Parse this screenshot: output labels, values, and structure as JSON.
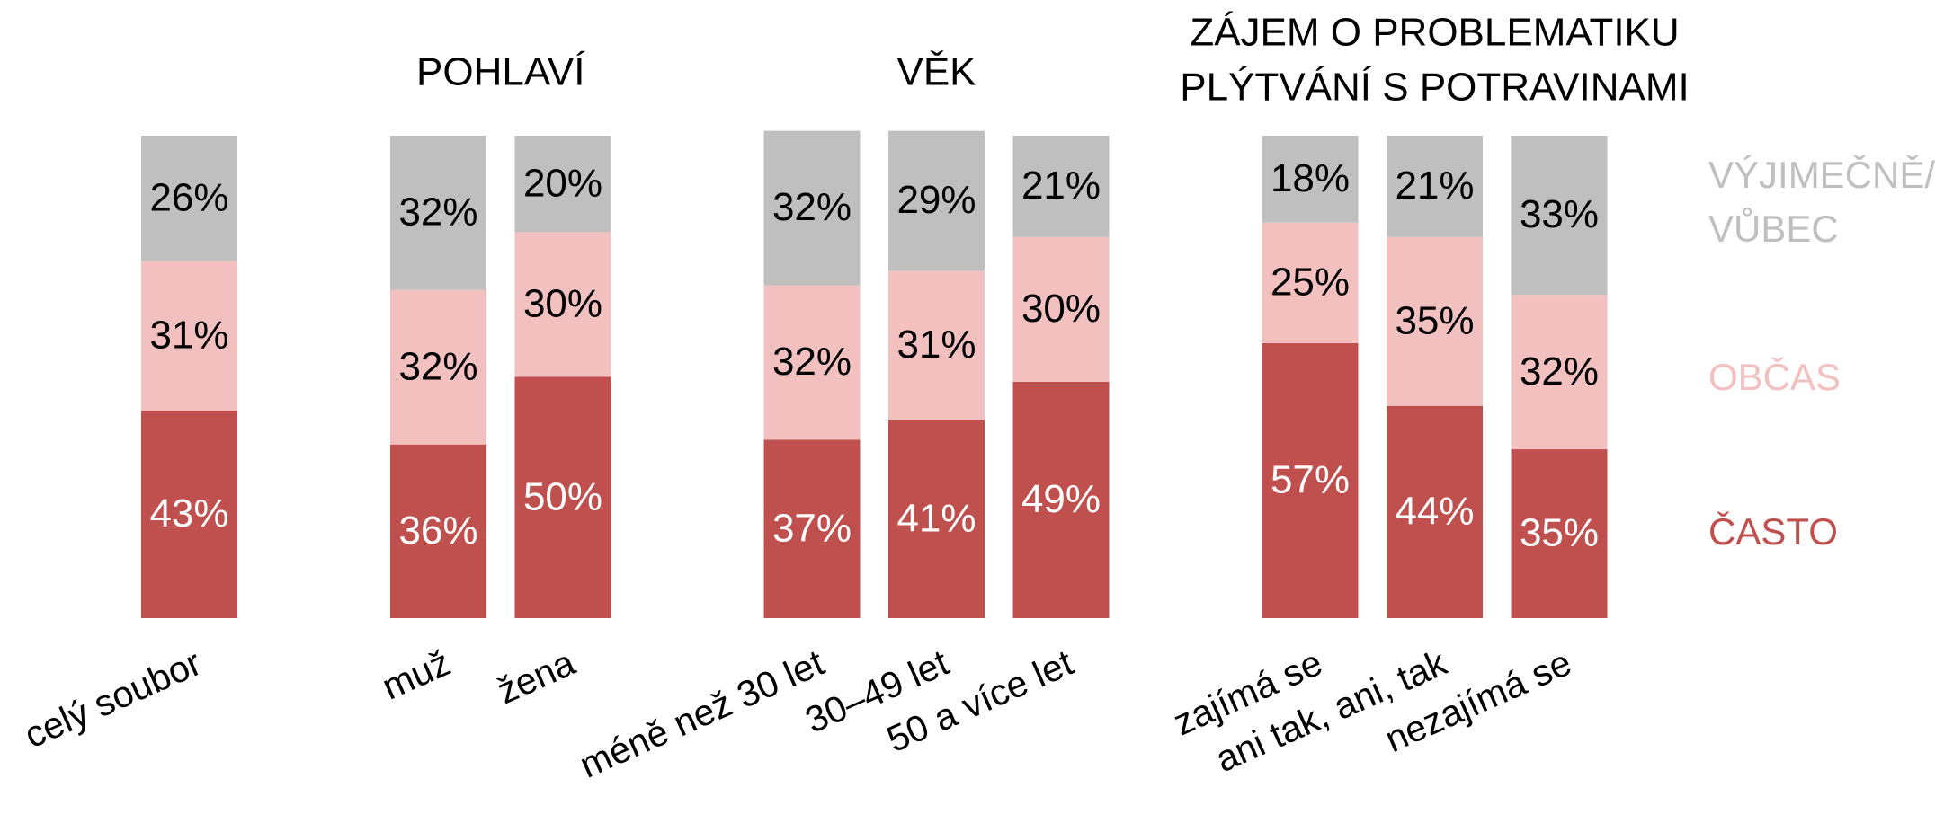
{
  "chart_data": {
    "type": "bar",
    "stacked": true,
    "annotations": [
      "POHLAVÍ",
      "VĚK",
      [
        "ZÁJEM O PROBLEMATIKU",
        "PLÝTVÁNÍ S POTRAVINAMI"
      ]
    ],
    "categories": [
      "celý soubor",
      null,
      "muž",
      "žena",
      null,
      "méně než 30 let",
      "30–49 let",
      "50 a více let",
      null,
      "zajímá se",
      "ani tak, ani, tak",
      "nezajímá se"
    ],
    "ylim": [
      0,
      100
    ],
    "series": [
      {
        "name": "ČASTO",
        "color": "#c0504d",
        "label_color": "#ffffff",
        "values": [
          43,
          null,
          36,
          50,
          null,
          37,
          41,
          49,
          null,
          57,
          44,
          35
        ],
        "value_labels": [
          "43%",
          null,
          "36%",
          "50%",
          null,
          "37%",
          "41%",
          "49%",
          null,
          "57%",
          "44%",
          "35%"
        ]
      },
      {
        "name": "OBČAS",
        "color": "#f2c0bf",
        "label_color": "#000000",
        "values": [
          31,
          null,
          32,
          30,
          null,
          32,
          31,
          30,
          null,
          25,
          35,
          32
        ],
        "value_labels": [
          "31%",
          null,
          "32%",
          "30%",
          null,
          "32%",
          "31%",
          "30%",
          null,
          "25%",
          "35%",
          "32%"
        ]
      },
      {
        "name": "VÝJIMEČNĚ/ VŮBEC",
        "color": "#bfbfbf",
        "label_color": "#000000",
        "values": [
          26,
          null,
          32,
          20,
          null,
          32,
          29,
          21,
          null,
          18,
          21,
          33
        ],
        "value_labels": [
          "26%",
          null,
          "32%",
          "20%",
          null,
          "32%",
          "29%",
          "21%",
          null,
          "18%",
          "21%",
          "33%"
        ]
      }
    ]
  }
}
